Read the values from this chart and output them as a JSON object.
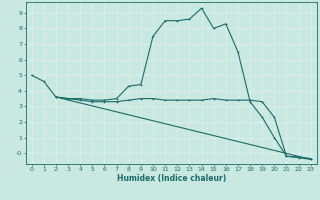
{
  "xlabel": "Humidex (Indice chaleur)",
  "xlim": [
    -0.5,
    23.5
  ],
  "ylim": [
    -0.7,
    9.7
  ],
  "xticks": [
    0,
    1,
    2,
    3,
    4,
    5,
    6,
    7,
    8,
    9,
    10,
    11,
    12,
    13,
    14,
    15,
    16,
    17,
    18,
    19,
    20,
    21,
    22,
    23
  ],
  "yticks": [
    0,
    1,
    2,
    3,
    4,
    5,
    6,
    7,
    8,
    9
  ],
  "ytick_labels": [
    "-0",
    "1",
    "2",
    "3",
    "4",
    "5",
    "6",
    "7",
    "8",
    "9"
  ],
  "bg_color": "#c8e8e0",
  "line_color": "#1a6b6b",
  "grid_color": "#e0f0ee",
  "line1_x": [
    0,
    1,
    2,
    3,
    4,
    5,
    6,
    7,
    8,
    9,
    10,
    11,
    12,
    13,
    14,
    15,
    16,
    17,
    18,
    19,
    20,
    21,
    22,
    23
  ],
  "line1_y": [
    5.0,
    4.6,
    3.6,
    3.5,
    3.5,
    3.4,
    3.4,
    3.5,
    4.3,
    4.4,
    7.5,
    8.5,
    8.5,
    8.6,
    9.3,
    8.0,
    8.3,
    6.5,
    3.3,
    2.3,
    1.0,
    -0.2,
    -0.3,
    -0.4
  ],
  "line2_x": [
    2,
    3,
    4,
    5,
    6,
    7,
    8,
    9,
    10,
    11,
    12,
    13,
    14,
    15,
    16,
    17,
    18,
    19,
    20,
    21,
    22,
    23
  ],
  "line2_y": [
    3.6,
    3.5,
    3.4,
    3.3,
    3.3,
    3.3,
    3.4,
    3.5,
    3.5,
    3.4,
    3.4,
    3.4,
    3.4,
    3.5,
    3.4,
    3.4,
    3.4,
    3.3,
    2.3,
    -0.2,
    -0.25,
    -0.35
  ],
  "line3_x": [
    2,
    23
  ],
  "line3_y": [
    3.6,
    -0.4
  ],
  "xlabel_fontsize": 5.5,
  "tick_fontsize": 4.5,
  "marker_size": 2.0,
  "line_width": 0.8
}
